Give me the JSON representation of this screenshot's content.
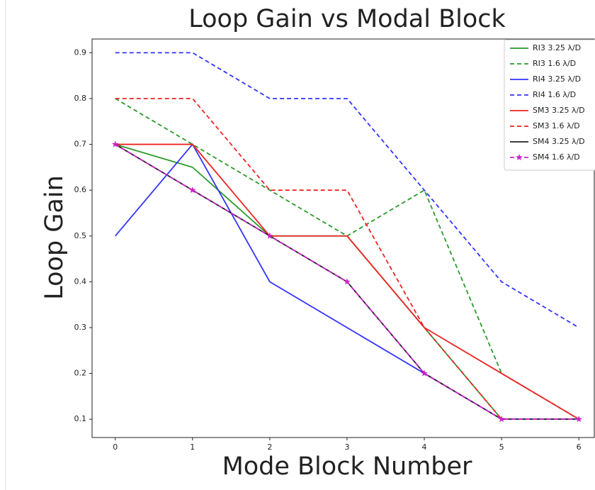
{
  "chart_data": {
    "type": "line",
    "title": "Loop Gain vs Modal Block",
    "xlabel": "Mode Block Number",
    "ylabel": "Loop Gain",
    "x": [
      0,
      1,
      2,
      3,
      4,
      5,
      6
    ],
    "xlim": [
      -0.3,
      6.2
    ],
    "ylim": [
      0.06,
      0.93
    ],
    "xticks": [
      0,
      1,
      2,
      3,
      4,
      5,
      6
    ],
    "yticks": [
      0.1,
      0.2,
      0.3,
      0.4,
      0.5,
      0.6,
      0.7,
      0.8,
      0.9
    ],
    "grid": false,
    "legend": "upper right",
    "series": [
      {
        "name": "RI3 3.25 λ/D",
        "color": "#2a9a2a",
        "linestyle": "solid",
        "values": [
          0.7,
          0.65,
          0.5,
          0.5,
          0.3,
          0.1,
          0.1
        ]
      },
      {
        "name": "RI3 1.6 λ/D",
        "color": "#2a9a2a",
        "linestyle": "dashed",
        "values": [
          0.8,
          0.7,
          0.6,
          0.5,
          0.6,
          0.2,
          0.1
        ]
      },
      {
        "name": "RI4 3.25 λ/D",
        "color": "#3333ff",
        "linestyle": "solid",
        "values": [
          0.5,
          0.7,
          0.4,
          0.3,
          0.2,
          0.1,
          0.1
        ]
      },
      {
        "name": "RI4 1.6 λ/D",
        "color": "#3333ff",
        "linestyle": "dashed",
        "values": [
          0.9,
          0.9,
          0.8,
          0.8,
          0.6,
          0.4,
          0.3
        ]
      },
      {
        "name": "SM3 3.25 λ/D",
        "color": "#ee2222",
        "linestyle": "solid",
        "values": [
          0.7,
          0.7,
          0.5,
          0.5,
          0.3,
          0.2,
          0.1
        ]
      },
      {
        "name": "SM3 1.6 λ/D",
        "color": "#ee2222",
        "linestyle": "dashed",
        "values": [
          0.8,
          0.8,
          0.6,
          0.6,
          0.3,
          0.1,
          0.1
        ]
      },
      {
        "name": "SM4 3.25 λ/D",
        "color": "#222222",
        "linestyle": "solid",
        "values": [
          0.7,
          0.6,
          0.5,
          0.4,
          0.2,
          0.1,
          0.1
        ]
      },
      {
        "name": "SM4 1.6 λ/D",
        "color": "#cc22cc",
        "linestyle": "dashed",
        "marker": "*",
        "values": [
          0.7,
          0.6,
          0.5,
          0.4,
          0.2,
          0.1,
          0.1
        ]
      }
    ]
  }
}
